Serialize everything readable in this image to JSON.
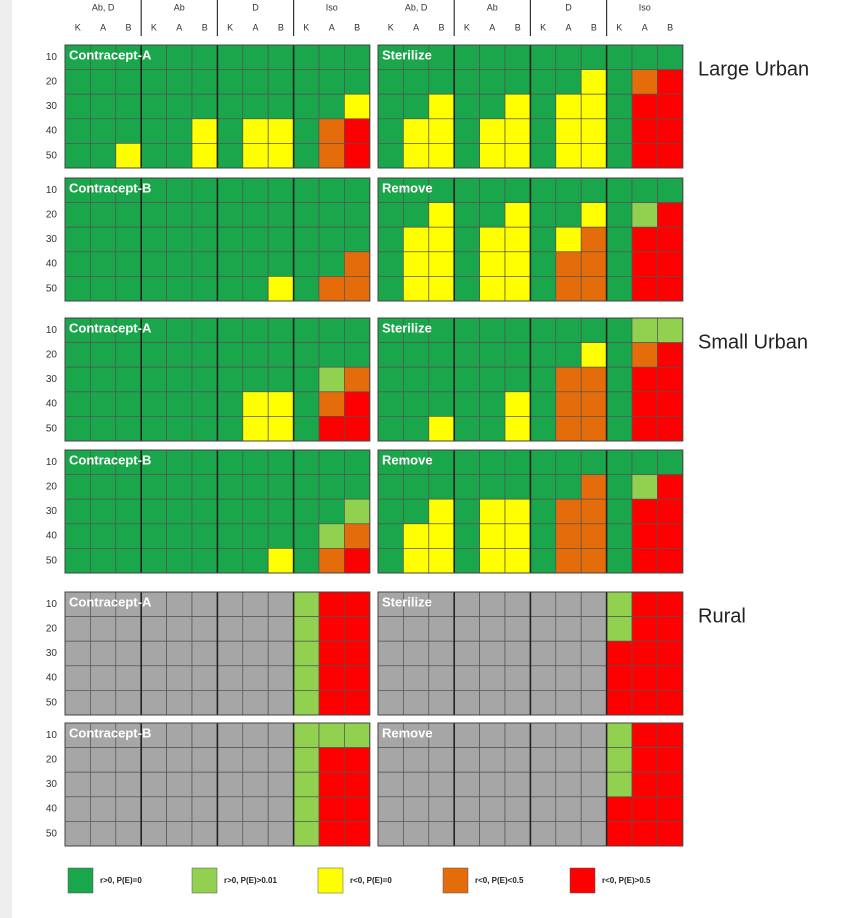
{
  "chart_data": {
    "type": "heatmap",
    "column_groups": [
      "Ab, D",
      "Ab",
      "D",
      "Iso"
    ],
    "subcolumns": [
      "K",
      "A",
      "B"
    ],
    "row_labels": [
      10,
      20,
      30,
      40,
      50
    ],
    "na_color": "#a6a6a6",
    "legend": [
      {
        "label": "r>0, P(E)=0",
        "color": "#1aa64a"
      },
      {
        "label": "r>0, P(E)>0.01",
        "color": "#92d050"
      },
      {
        "label": "r<0, P(E)=0",
        "color": "#ffff00"
      },
      {
        "label": "r<0, P(E)<0.5",
        "color": "#e46c0a"
      },
      {
        "label": "r<0, P(E)>0.5",
        "color": "#ff0000"
      }
    ],
    "regions": [
      {
        "name": "Large Urban",
        "panels": [
          {
            "title": "Contracept-A",
            "cells": [
              [
                0,
                0,
                0,
                0,
                0,
                0,
                0,
                0,
                0,
                0,
                0,
                0
              ],
              [
                0,
                0,
                0,
                0,
                0,
                0,
                0,
                0,
                0,
                0,
                0,
                0
              ],
              [
                0,
                0,
                0,
                0,
                0,
                0,
                0,
                0,
                0,
                0,
                0,
                2
              ],
              [
                0,
                0,
                0,
                0,
                0,
                2,
                0,
                2,
                2,
                0,
                3,
                4
              ],
              [
                0,
                0,
                2,
                0,
                0,
                2,
                0,
                2,
                2,
                0,
                3,
                4
              ]
            ]
          },
          {
            "title": "Sterilize",
            "cells": [
              [
                0,
                0,
                0,
                0,
                0,
                0,
                0,
                0,
                0,
                0,
                0,
                0
              ],
              [
                0,
                0,
                0,
                0,
                0,
                0,
                0,
                0,
                2,
                0,
                3,
                4
              ],
              [
                0,
                0,
                2,
                0,
                0,
                2,
                0,
                2,
                2,
                0,
                4,
                4
              ],
              [
                0,
                2,
                2,
                0,
                2,
                2,
                0,
                2,
                2,
                0,
                4,
                4
              ],
              [
                0,
                2,
                2,
                0,
                2,
                2,
                0,
                2,
                2,
                0,
                4,
                4
              ]
            ]
          },
          {
            "title": "Contracept-B",
            "cells": [
              [
                0,
                0,
                0,
                0,
                0,
                0,
                0,
                0,
                0,
                0,
                0,
                0
              ],
              [
                0,
                0,
                0,
                0,
                0,
                0,
                0,
                0,
                0,
                0,
                0,
                0
              ],
              [
                0,
                0,
                0,
                0,
                0,
                0,
                0,
                0,
                0,
                0,
                0,
                0
              ],
              [
                0,
                0,
                0,
                0,
                0,
                0,
                0,
                0,
                0,
                0,
                0,
                3
              ],
              [
                0,
                0,
                0,
                0,
                0,
                0,
                0,
                0,
                2,
                0,
                3,
                3
              ]
            ]
          },
          {
            "title": "Remove",
            "cells": [
              [
                0,
                0,
                0,
                0,
                0,
                0,
                0,
                0,
                0,
                0,
                0,
                0
              ],
              [
                0,
                0,
                2,
                0,
                0,
                2,
                0,
                0,
                2,
                0,
                1,
                4
              ],
              [
                0,
                2,
                2,
                0,
                2,
                2,
                0,
                2,
                3,
                0,
                4,
                4
              ],
              [
                0,
                2,
                2,
                0,
                2,
                2,
                0,
                3,
                3,
                0,
                4,
                4
              ],
              [
                0,
                2,
                2,
                0,
                2,
                2,
                0,
                3,
                3,
                0,
                4,
                4
              ]
            ]
          }
        ]
      },
      {
        "name": "Small Urban",
        "panels": [
          {
            "title": "Contracept-A",
            "cells": [
              [
                0,
                0,
                0,
                0,
                0,
                0,
                0,
                0,
                0,
                0,
                0,
                0
              ],
              [
                0,
                0,
                0,
                0,
                0,
                0,
                0,
                0,
                0,
                0,
                0,
                0
              ],
              [
                0,
                0,
                0,
                0,
                0,
                0,
                0,
                0,
                0,
                0,
                1,
                3
              ],
              [
                0,
                0,
                0,
                0,
                0,
                0,
                0,
                2,
                2,
                0,
                3,
                4
              ],
              [
                0,
                0,
                0,
                0,
                0,
                0,
                0,
                2,
                2,
                0,
                4,
                4
              ]
            ]
          },
          {
            "title": "Sterilize",
            "cells": [
              [
                0,
                0,
                0,
                0,
                0,
                0,
                0,
                0,
                0,
                0,
                1,
                1
              ],
              [
                0,
                0,
                0,
                0,
                0,
                0,
                0,
                0,
                2,
                0,
                3,
                4
              ],
              [
                0,
                0,
                0,
                0,
                0,
                0,
                0,
                3,
                3,
                0,
                4,
                4
              ],
              [
                0,
                0,
                0,
                0,
                0,
                2,
                0,
                3,
                3,
                0,
                4,
                4
              ],
              [
                0,
                0,
                2,
                0,
                0,
                2,
                0,
                3,
                3,
                0,
                4,
                4
              ]
            ]
          },
          {
            "title": "Contracept-B",
            "cells": [
              [
                0,
                0,
                0,
                0,
                0,
                0,
                0,
                0,
                0,
                0,
                0,
                0
              ],
              [
                0,
                0,
                0,
                0,
                0,
                0,
                0,
                0,
                0,
                0,
                0,
                0
              ],
              [
                0,
                0,
                0,
                0,
                0,
                0,
                0,
                0,
                0,
                0,
                0,
                1
              ],
              [
                0,
                0,
                0,
                0,
                0,
                0,
                0,
                0,
                0,
                0,
                1,
                3
              ],
              [
                0,
                0,
                0,
                0,
                0,
                0,
                0,
                0,
                2,
                0,
                3,
                4
              ]
            ]
          },
          {
            "title": "Remove",
            "cells": [
              [
                0,
                0,
                0,
                0,
                0,
                0,
                0,
                0,
                0,
                0,
                0,
                0
              ],
              [
                0,
                0,
                0,
                0,
                0,
                0,
                0,
                0,
                3,
                0,
                1,
                4
              ],
              [
                0,
                0,
                2,
                0,
                2,
                2,
                0,
                3,
                3,
                0,
                4,
                4
              ],
              [
                0,
                2,
                2,
                0,
                2,
                2,
                0,
                3,
                3,
                0,
                4,
                4
              ],
              [
                0,
                2,
                2,
                0,
                2,
                2,
                0,
                3,
                3,
                0,
                4,
                4
              ]
            ]
          }
        ]
      },
      {
        "name": "Rural",
        "panels": [
          {
            "title": "Contracept-A",
            "cells": [
              [
                null,
                null,
                null,
                null,
                null,
                null,
                null,
                null,
                null,
                1,
                4,
                4
              ],
              [
                null,
                null,
                null,
                null,
                null,
                null,
                null,
                null,
                null,
                1,
                4,
                4
              ],
              [
                null,
                null,
                null,
                null,
                null,
                null,
                null,
                null,
                null,
                1,
                4,
                4
              ],
              [
                null,
                null,
                null,
                null,
                null,
                null,
                null,
                null,
                null,
                1,
                4,
                4
              ],
              [
                null,
                null,
                null,
                null,
                null,
                null,
                null,
                null,
                null,
                1,
                4,
                4
              ]
            ]
          },
          {
            "title": "Sterilize",
            "cells": [
              [
                null,
                null,
                null,
                null,
                null,
                null,
                null,
                null,
                null,
                1,
                4,
                4
              ],
              [
                null,
                null,
                null,
                null,
                null,
                null,
                null,
                null,
                null,
                1,
                4,
                4
              ],
              [
                null,
                null,
                null,
                null,
                null,
                null,
                null,
                null,
                null,
                4,
                4,
                4
              ],
              [
                null,
                null,
                null,
                null,
                null,
                null,
                null,
                null,
                null,
                4,
                4,
                4
              ],
              [
                null,
                null,
                null,
                null,
                null,
                null,
                null,
                null,
                null,
                4,
                4,
                4
              ]
            ]
          },
          {
            "title": "Contracept-B",
            "cells": [
              [
                null,
                null,
                null,
                null,
                null,
                null,
                null,
                null,
                null,
                1,
                1,
                1
              ],
              [
                null,
                null,
                null,
                null,
                null,
                null,
                null,
                null,
                null,
                1,
                4,
                4
              ],
              [
                null,
                null,
                null,
                null,
                null,
                null,
                null,
                null,
                null,
                1,
                4,
                4
              ],
              [
                null,
                null,
                null,
                null,
                null,
                null,
                null,
                null,
                null,
                1,
                4,
                4
              ],
              [
                null,
                null,
                null,
                null,
                null,
                null,
                null,
                null,
                null,
                1,
                4,
                4
              ]
            ]
          },
          {
            "title": "Remove",
            "cells": [
              [
                null,
                null,
                null,
                null,
                null,
                null,
                null,
                null,
                null,
                1,
                4,
                4
              ],
              [
                null,
                null,
                null,
                null,
                null,
                null,
                null,
                null,
                null,
                1,
                4,
                4
              ],
              [
                null,
                null,
                null,
                null,
                null,
                null,
                null,
                null,
                null,
                1,
                4,
                4
              ],
              [
                null,
                null,
                null,
                null,
                null,
                null,
                null,
                null,
                null,
                4,
                4,
                4
              ],
              [
                null,
                null,
                null,
                null,
                null,
                null,
                null,
                null,
                null,
                4,
                4,
                4
              ]
            ]
          }
        ]
      }
    ]
  }
}
